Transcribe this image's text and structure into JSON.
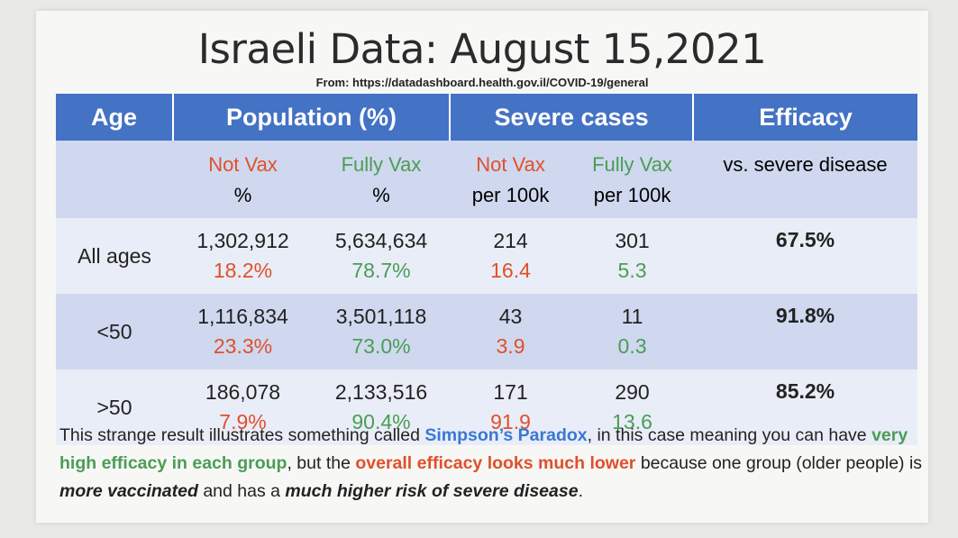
{
  "title": "Israeli Data: August 15,2021",
  "source": "From: https://datadashboard.health.gov.il/COVID-19/general",
  "colors": {
    "header_bg": "#4472c4",
    "subheader_bg": "#cfd8ee",
    "not_vax": "#e0502b",
    "fully_vax": "#4a9d56",
    "link_blue": "#3a78d4"
  },
  "headers": {
    "age": "Age",
    "population": "Population (%)",
    "severe": "Severe cases",
    "efficacy": "Efficacy"
  },
  "subheaders": {
    "not_vax": "Not Vax",
    "fully_vax": "Fully Vax",
    "pct": "%",
    "per100k": "per 100k",
    "vs_severe": "vs. severe disease"
  },
  "rows": [
    {
      "age": "All ages",
      "pop_not": "1,302,912",
      "pop_not_pct": "18.2%",
      "pop_full": "5,634,634",
      "pop_full_pct": "78.7%",
      "sev_not": "214",
      "sev_not_rate": "16.4",
      "sev_full": "301",
      "sev_full_rate": "5.3",
      "efficacy": "67.5%"
    },
    {
      "age": "<50",
      "pop_not": "1,116,834",
      "pop_not_pct": "23.3%",
      "pop_full": "3,501,118",
      "pop_full_pct": "73.0%",
      "sev_not": "43",
      "sev_not_rate": "3.9",
      "sev_full": "11",
      "sev_full_rate": "0.3",
      "efficacy": "91.8%"
    },
    {
      "age": ">50",
      "pop_not": "186,078",
      "pop_not_pct": "7.9%",
      "pop_full": "2,133,516",
      "pop_full_pct": "90.4%",
      "sev_not": "171",
      "sev_not_rate": "91.9",
      "sev_full": "290",
      "sev_full_rate": "13.6",
      "efficacy": "85.2%"
    }
  ],
  "footer": {
    "p1": "This strange result illustrates something called ",
    "simpson": "Simpson’s Paradox",
    "p2": ", in this case meaning you can have ",
    "high_eff": "very high efficacy in each group",
    "p3": ", but the ",
    "overall": "overall efficacy looks much lower",
    "p4": " because one group (older people) is ",
    "more_vax": "more vaccinated",
    "p5": " and has a ",
    "higher_risk": "much higher risk of severe disease",
    "p6": "."
  }
}
